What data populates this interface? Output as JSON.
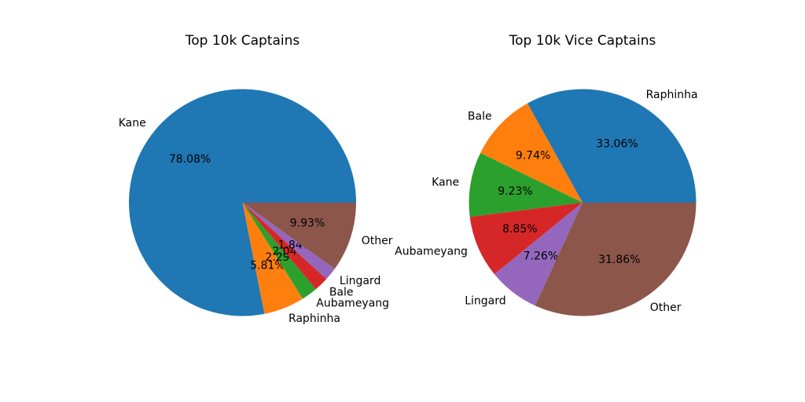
{
  "chart_data": [
    {
      "type": "pie",
      "title": "Top 10k Captains",
      "start_angle_deg": 0,
      "direction": "counterclockwise",
      "slices": [
        {
          "label": "Kane",
          "value": 78.08,
          "pct_label": "78.08%",
          "color": "#1f77b4"
        },
        {
          "label": "Raphinha",
          "value": 5.81,
          "pct_label": "5.81%",
          "color": "#ff7f0e"
        },
        {
          "label": "Aubameyang",
          "value": 2.29,
          "pct_label": "2.29%",
          "color": "#2ca02c"
        },
        {
          "label": "Bale",
          "value": 2.04,
          "pct_label": "2.04%",
          "color": "#d62728"
        },
        {
          "label": "Lingard",
          "value": 1.84,
          "pct_label": "1.84%",
          "color": "#9467bd"
        },
        {
          "label": "Other",
          "value": 9.93,
          "pct_label": "9.93%",
          "color": "#8c564b"
        }
      ]
    },
    {
      "type": "pie",
      "title": "Top 10k Vice Captains",
      "start_angle_deg": 0,
      "direction": "counterclockwise",
      "slices": [
        {
          "label": "Raphinha",
          "value": 33.06,
          "pct_label": "33.06%",
          "color": "#1f77b4"
        },
        {
          "label": "Bale",
          "value": 9.74,
          "pct_label": "9.74%",
          "color": "#ff7f0e"
        },
        {
          "label": "Kane",
          "value": 9.23,
          "pct_label": "9.23%",
          "color": "#2ca02c"
        },
        {
          "label": "Aubameyang",
          "value": 8.85,
          "pct_label": "8.85%",
          "color": "#d62728"
        },
        {
          "label": "Lingard",
          "value": 7.26,
          "pct_label": "7.26%",
          "color": "#9467bd"
        },
        {
          "label": "Other",
          "value": 31.86,
          "pct_label": "31.86%",
          "color": "#8c564b"
        }
      ]
    }
  ]
}
